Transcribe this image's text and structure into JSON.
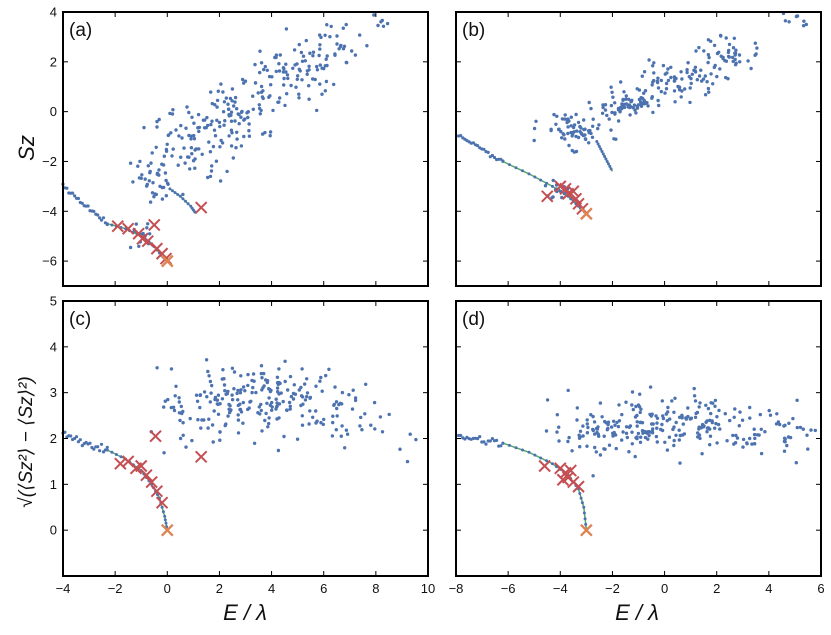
{
  "chart_data": [
    {
      "type": "scatter",
      "panel_label": "(a)",
      "xlabel": "",
      "ylabel": "Sz",
      "xlim": [
        -4,
        10
      ],
      "ylim": [
        -7,
        4
      ],
      "xticks": [],
      "xtick_labels": [],
      "yticks": [
        -6,
        -4,
        -2,
        0,
        2,
        4
      ],
      "ytick_labels": [
        "−6",
        "−4",
        "−2",
        "0",
        "2",
        "4"
      ],
      "grid": false,
      "colors": {
        "points": "#4c72b0",
        "crosses": "#c44e52",
        "line": "#55a868",
        "ground": "#dd8452"
      },
      "curves": [
        {
          "x": [
            -2.3,
            -1.6,
            -1.0,
            -0.6,
            -0.2,
            0.0
          ],
          "y": [
            -4.5,
            -4.7,
            -5.0,
            -5.3,
            -5.8,
            -6.0
          ]
        },
        {
          "x": [
            0.1,
            0.5,
            0.9,
            1.1
          ],
          "y": [
            -3.1,
            -3.4,
            -3.8,
            -4.1
          ]
        }
      ],
      "crosses": [
        {
          "x": -1.9,
          "y": -4.6
        },
        {
          "x": -1.5,
          "y": -4.7
        },
        {
          "x": -1.1,
          "y": -4.9
        },
        {
          "x": -0.95,
          "y": -5.1
        },
        {
          "x": -0.75,
          "y": -5.2
        },
        {
          "x": -0.5,
          "y": -4.55
        },
        {
          "x": -0.4,
          "y": -5.5
        },
        {
          "x": -0.2,
          "y": -5.7
        },
        {
          "x": -0.05,
          "y": -5.9
        },
        {
          "x": 1.3,
          "y": -3.85
        }
      ],
      "ground_state": {
        "x": 0.0,
        "y": -6.0
      },
      "tail": {
        "x0": -4.0,
        "y0": -3.0,
        "x1": -2.3,
        "y1": -4.5,
        "n": 24
      },
      "clusters": [
        {
          "cx": -0.9,
          "cy": -5.0,
          "sx": 0.4,
          "sy": 0.3,
          "n": 14
        },
        {
          "cx": -0.5,
          "cy": -2.8,
          "sx": 0.5,
          "sy": 0.5,
          "n": 40
        },
        {
          "cx": 0.9,
          "cy": -1.3,
          "sx": 0.7,
          "sy": 0.7,
          "n": 65
        },
        {
          "cx": 2.8,
          "cy": 0.0,
          "sx": 0.8,
          "sy": 0.7,
          "n": 80
        },
        {
          "cx": 4.5,
          "cy": 1.4,
          "sx": 0.8,
          "sy": 0.7,
          "n": 70
        },
        {
          "cx": 6.2,
          "cy": 2.5,
          "sx": 0.6,
          "sy": 0.5,
          "n": 40
        },
        {
          "cx": 8.2,
          "cy": 3.7,
          "sx": 0.4,
          "sy": 0.25,
          "n": 8
        }
      ]
    },
    {
      "type": "scatter",
      "panel_label": "(b)",
      "xlabel": "",
      "ylabel": "",
      "xlim": [
        -8,
        6
      ],
      "ylim": [
        -7,
        4
      ],
      "xticks": [],
      "xtick_labels": [],
      "yticks": [
        -6,
        -4,
        -2,
        0,
        2,
        4
      ],
      "ytick_labels": [],
      "grid": false,
      "colors": {
        "points": "#4c72b0",
        "crosses": "#c44e52",
        "line": "#55a868",
        "ground": "#dd8452"
      },
      "curves": [
        {
          "x": [
            -6.2,
            -5.2,
            -4.3,
            -3.7,
            -3.3,
            -3.0
          ],
          "y": [
            -2.0,
            -2.5,
            -3.0,
            -3.4,
            -3.8,
            -4.1
          ]
        },
        {
          "x": [
            -2.6,
            -2.4,
            -2.2,
            -2.0
          ],
          "y": [
            -1.2,
            -1.6,
            -2.0,
            -2.4
          ]
        }
      ],
      "crosses": [
        {
          "x": -4.5,
          "y": -3.4
        },
        {
          "x": -4.0,
          "y": -3.0
        },
        {
          "x": -3.8,
          "y": -3.1
        },
        {
          "x": -3.7,
          "y": -3.3
        },
        {
          "x": -3.5,
          "y": -3.2
        },
        {
          "x": -3.4,
          "y": -3.5
        },
        {
          "x": -3.3,
          "y": -3.7
        },
        {
          "x": -3.15,
          "y": -3.9
        }
      ],
      "ground_state": {
        "x": -3.0,
        "y": -4.1
      },
      "tail": {
        "x0": -7.9,
        "y0": -1.0,
        "x1": -6.2,
        "y1": -2.0,
        "n": 22
      },
      "clusters": [
        {
          "cx": -4.2,
          "cy": -3.2,
          "sx": 0.35,
          "sy": 0.25,
          "n": 14
        },
        {
          "cx": -3.5,
          "cy": -0.7,
          "sx": 0.6,
          "sy": 0.35,
          "n": 70
        },
        {
          "cx": -1.4,
          "cy": 0.3,
          "sx": 0.7,
          "sy": 0.3,
          "n": 75
        },
        {
          "cx": 0.6,
          "cy": 1.3,
          "sx": 0.7,
          "sy": 0.35,
          "n": 70
        },
        {
          "cx": 2.6,
          "cy": 2.3,
          "sx": 0.6,
          "sy": 0.35,
          "n": 45
        },
        {
          "cx": 4.8,
          "cy": 3.6,
          "sx": 0.5,
          "sy": 0.25,
          "n": 8
        }
      ]
    },
    {
      "type": "scatter",
      "panel_label": "(c)",
      "xlabel": "E / λ",
      "ylabel": "√(⟨Sz²⟩ − ⟨Sz⟩²)",
      "xlim": [
        -4,
        10
      ],
      "ylim": [
        -1,
        5
      ],
      "xticks": [
        -4,
        -2,
        0,
        2,
        4,
        6,
        8,
        10
      ],
      "xtick_labels": [
        "−4",
        "−2",
        "0",
        "2",
        "4",
        "6",
        "8",
        "10"
      ],
      "yticks": [
        0,
        1,
        2,
        3,
        4,
        5
      ],
      "ytick_labels": [
        "0",
        "1",
        "2",
        "3",
        "4",
        "5"
      ],
      "grid": false,
      "colors": {
        "points": "#4c72b0",
        "crosses": "#c44e52",
        "line": "#55a868",
        "ground": "#dd8452"
      },
      "curves": [
        {
          "x": [
            -2.3,
            -1.6,
            -1.0,
            -0.6,
            -0.3,
            -0.1,
            0.0
          ],
          "y": [
            1.75,
            1.55,
            1.3,
            1.0,
            0.7,
            0.3,
            0.0
          ]
        }
      ],
      "crosses": [
        {
          "x": -1.8,
          "y": 1.45
        },
        {
          "x": -1.5,
          "y": 1.5
        },
        {
          "x": -1.2,
          "y": 1.35
        },
        {
          "x": -1.0,
          "y": 1.4
        },
        {
          "x": -0.8,
          "y": 1.2
        },
        {
          "x": -0.6,
          "y": 1.05
        },
        {
          "x": -0.4,
          "y": 0.85
        },
        {
          "x": -0.2,
          "y": 0.6
        },
        {
          "x": -0.45,
          "y": 2.05
        },
        {
          "x": 1.3,
          "y": 1.6
        }
      ],
      "ground_state": {
        "x": 0.0,
        "y": 0.0
      },
      "tail": {
        "x0": -4.0,
        "y0": 2.1,
        "x1": -2.3,
        "y1": 1.75,
        "n": 24
      },
      "clusters": [
        {
          "cx": 0.5,
          "cy": 2.4,
          "sx": 0.6,
          "sy": 0.4,
          "n": 30
        },
        {
          "cx": 2.4,
          "cy": 2.8,
          "sx": 0.9,
          "sy": 0.35,
          "n": 90
        },
        {
          "cx": 4.6,
          "cy": 2.9,
          "sx": 1.0,
          "sy": 0.35,
          "n": 90
        },
        {
          "cx": 7.0,
          "cy": 2.5,
          "sx": 0.9,
          "sy": 0.4,
          "n": 35
        },
        {
          "cx": 9.0,
          "cy": 2.1,
          "sx": 0.6,
          "sy": 0.3,
          "n": 6
        }
      ]
    },
    {
      "type": "scatter",
      "panel_label": "(d)",
      "xlabel": "E / λ",
      "ylabel": "",
      "xlim": [
        -8,
        6
      ],
      "ylim": [
        -1,
        5
      ],
      "xticks": [
        -8,
        -6,
        -4,
        -2,
        0,
        2,
        4,
        6
      ],
      "xtick_labels": [
        "−8",
        "−6",
        "−4",
        "−2",
        "0",
        "2",
        "4",
        "6"
      ],
      "yticks": [
        0,
        1,
        2,
        3,
        4,
        5
      ],
      "ytick_labels": [],
      "grid": false,
      "colors": {
        "points": "#4c72b0",
        "crosses": "#c44e52",
        "line": "#55a868",
        "ground": "#dd8452"
      },
      "curves": [
        {
          "x": [
            -6.2,
            -5.2,
            -4.3,
            -3.7,
            -3.3,
            -3.1,
            -3.0
          ],
          "y": [
            1.9,
            1.7,
            1.45,
            1.2,
            0.9,
            0.5,
            0.0
          ]
        }
      ],
      "crosses": [
        {
          "x": -4.6,
          "y": 1.4
        },
        {
          "x": -4.0,
          "y": 1.35
        },
        {
          "x": -3.8,
          "y": 1.25
        },
        {
          "x": -3.7,
          "y": 1.15
        },
        {
          "x": -3.5,
          "y": 1.05
        },
        {
          "x": -3.3,
          "y": 0.95
        },
        {
          "x": -3.6,
          "y": 1.3
        },
        {
          "x": -3.9,
          "y": 1.1
        }
      ],
      "ground_state": {
        "x": -3.0,
        "y": 0.0
      },
      "tail": {
        "x0": -7.9,
        "y0": 2.05,
        "x1": -6.2,
        "y1": 1.9,
        "n": 22
      },
      "clusters": [
        {
          "cx": -2.8,
          "cy": 2.2,
          "sx": 0.8,
          "sy": 0.3,
          "n": 55
        },
        {
          "cx": -0.8,
          "cy": 2.3,
          "sx": 0.8,
          "sy": 0.3,
          "n": 80
        },
        {
          "cx": 1.3,
          "cy": 2.3,
          "sx": 0.9,
          "sy": 0.3,
          "n": 80
        },
        {
          "cx": 3.6,
          "cy": 2.2,
          "sx": 0.8,
          "sy": 0.3,
          "n": 45
        },
        {
          "cx": 5.2,
          "cy": 2.05,
          "sx": 0.4,
          "sy": 0.15,
          "n": 10
        }
      ]
    }
  ]
}
